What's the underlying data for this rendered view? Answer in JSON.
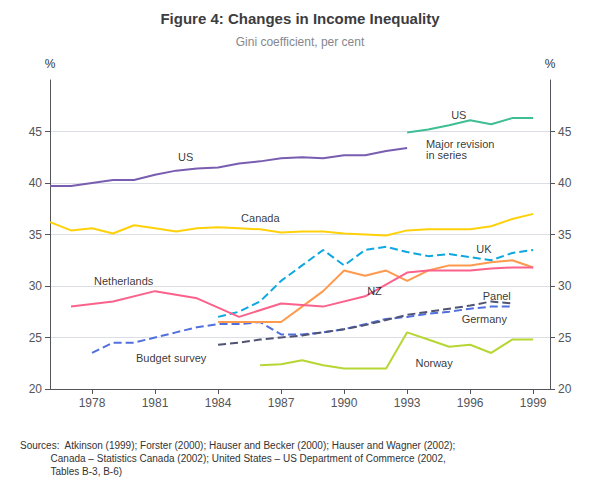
{
  "chart_data": {
    "type": "line",
    "title": "Figure 4: Changes in Income Inequality",
    "subtitle": "Gini coefficient, per cent",
    "ylabel": "%",
    "ylabel_right": "%",
    "source_text": "Sources:  Atkinson (1999); Forster (2000); Hauser and Becker (2000); Hauser and Wagner (2002);\n           Canada – Statistics Canada (2002); United States – US Department of Commerce (2002,\n           Tables B-3, B-6)",
    "xlim": [
      1976.0,
      1999.8
    ],
    "xticks": [
      1978,
      1981,
      1984,
      1987,
      1990,
      1993,
      1996,
      1999
    ],
    "ylim": [
      20,
      50
    ],
    "yticks": [
      20,
      25,
      30,
      35,
      40,
      45
    ],
    "y2lim": [
      20,
      50
    ],
    "y2ticks": [
      20,
      25,
      30,
      35,
      40,
      45
    ],
    "grid": true,
    "series": [
      {
        "line_style": "dashed",
        "x": [
          1978,
          1979,
          1980,
          1981,
          1982,
          1983,
          1984,
          1985,
          1986,
          1987,
          1988,
          1989,
          1990,
          1991,
          1992,
          1993,
          1994,
          1995,
          1996,
          1997,
          1998
        ],
        "values": [
          23.5,
          24.5,
          24.5,
          25.0,
          25.5,
          26.0,
          26.3,
          26.3,
          26.5,
          25.3,
          25.3,
          25.5,
          25.8,
          26.3,
          26.8,
          27.0,
          27.3,
          27.5,
          27.8,
          28.0,
          28.0
        ]
      },
      {
        "line_style": "solid",
        "x": [
          1986,
          1987,
          1988,
          1989,
          1990,
          1991,
          1992,
          1993,
          1994,
          1995,
          1996,
          1997,
          1998,
          1999
        ],
        "values": [
          22.3,
          22.4,
          22.8,
          22.3,
          22.0,
          22.0,
          22.0,
          25.5,
          24.8,
          24.1,
          24.3,
          23.5,
          24.8,
          24.8
        ]
      },
      {
        "line_style": "dashed",
        "x": [
          1984,
          1985,
          1986,
          1987,
          1988,
          1989,
          1990,
          1991,
          1992,
          1993,
          1994,
          1995,
          1996,
          1997,
          1998
        ],
        "values": [
          24.3,
          24.5,
          24.8,
          25.0,
          25.2,
          25.5,
          25.8,
          26.2,
          26.7,
          27.2,
          27.5,
          27.8,
          28.1,
          28.5,
          28.3
        ]
      },
      {
        "line_style": "solid",
        "x": [
          1984,
          1985,
          1986,
          1987,
          1988,
          1989,
          1990,
          1991,
          1992,
          1993,
          1994,
          1995,
          1996,
          1997,
          1998,
          1999
        ],
        "values": [
          26.5,
          26.5,
          26.5,
          26.5,
          28.0,
          29.5,
          31.5,
          31.0,
          31.5,
          30.5,
          31.5,
          32.0,
          32.0,
          32.3,
          32.5,
          31.8
        ]
      },
      {
        "line_style": "dashed",
        "x": [
          1984,
          1985,
          1986,
          1987,
          1988,
          1989,
          1990,
          1991,
          1992,
          1993,
          1994,
          1995,
          1996,
          1997,
          1998,
          1999
        ],
        "values": [
          27.0,
          27.5,
          28.5,
          30.5,
          32.0,
          33.5,
          32.0,
          33.5,
          33.8,
          33.3,
          32.9,
          33.1,
          32.8,
          32.5,
          33.2,
          33.5
        ]
      },
      {
        "line_style": "solid",
        "x": [
          1976,
          1977,
          1978,
          1979,
          1980,
          1981,
          1982,
          1983,
          1984,
          1985,
          1986,
          1987,
          1988,
          1989,
          1990,
          1991,
          1992,
          1993,
          1994,
          1995,
          1996,
          1997,
          1998,
          1999
        ],
        "values": [
          36.2,
          35.4,
          35.6,
          35.1,
          35.9,
          35.6,
          35.3,
          35.6,
          35.7,
          35.6,
          35.5,
          35.2,
          35.3,
          35.3,
          35.1,
          35.0,
          34.9,
          35.4,
          35.5,
          35.5,
          35.5,
          35.8,
          36.5,
          37.0
        ]
      },
      {
        "line_style": "solid",
        "x": [
          1977,
          1979,
          1981,
          1983,
          1985,
          1987,
          1989,
          1991,
          1993,
          1994,
          1995,
          1996,
          1997,
          1998,
          1999
        ],
        "values": [
          28.0,
          28.5,
          29.5,
          28.8,
          27.0,
          28.3,
          28.0,
          29.0,
          31.3,
          31.5,
          31.5,
          31.5,
          31.7,
          31.8,
          31.8
        ]
      },
      {
        "line_style": "solid",
        "x": [
          1976,
          1977,
          1978,
          1979,
          1980,
          1981,
          1982,
          1983,
          1984,
          1985,
          1986,
          1987,
          1988,
          1989,
          1990,
          1991,
          1992,
          1993
        ],
        "values": [
          39.7,
          39.7,
          40.0,
          40.3,
          40.3,
          40.8,
          41.2,
          41.4,
          41.5,
          41.9,
          42.1,
          42.4,
          42.5,
          42.4,
          42.7,
          42.7,
          43.1,
          43.4
        ]
      },
      {
        "line_style": "solid",
        "x": [
          1993,
          1994,
          1995,
          1996,
          1997,
          1998,
          1999
        ],
        "values": [
          44.9,
          45.2,
          45.6,
          46.1,
          45.7,
          46.3,
          46.3
        ]
      }
    ],
    "annotations": [
      {
        "text": "US",
        "x": 1982.0,
        "y": 42.5
      },
      {
        "text": "US",
        "x": 1995.0,
        "y": 46.6
      },
      {
        "text": "Canada",
        "x": 1985.0,
        "y": 36.6
      },
      {
        "text": "Netherlands",
        "x": 1978.0,
        "y": 30.5
      },
      {
        "text": "UK",
        "x": 1996.2,
        "y": 33.6
      },
      {
        "text": "NZ",
        "x": 1991.0,
        "y": 29.5
      },
      {
        "text": "Panel",
        "x": 1996.5,
        "y": 29.0
      },
      {
        "text": "Germany",
        "x": 1995.5,
        "y": 26.8
      },
      {
        "text": "Budget survey",
        "x": 1980.0,
        "y": 23.0
      },
      {
        "text": "Norway",
        "x": 1993.3,
        "y": 22.5
      },
      {
        "text": "Major revision\nin series",
        "x": 1993.8,
        "y": 43.3
      }
    ]
  }
}
